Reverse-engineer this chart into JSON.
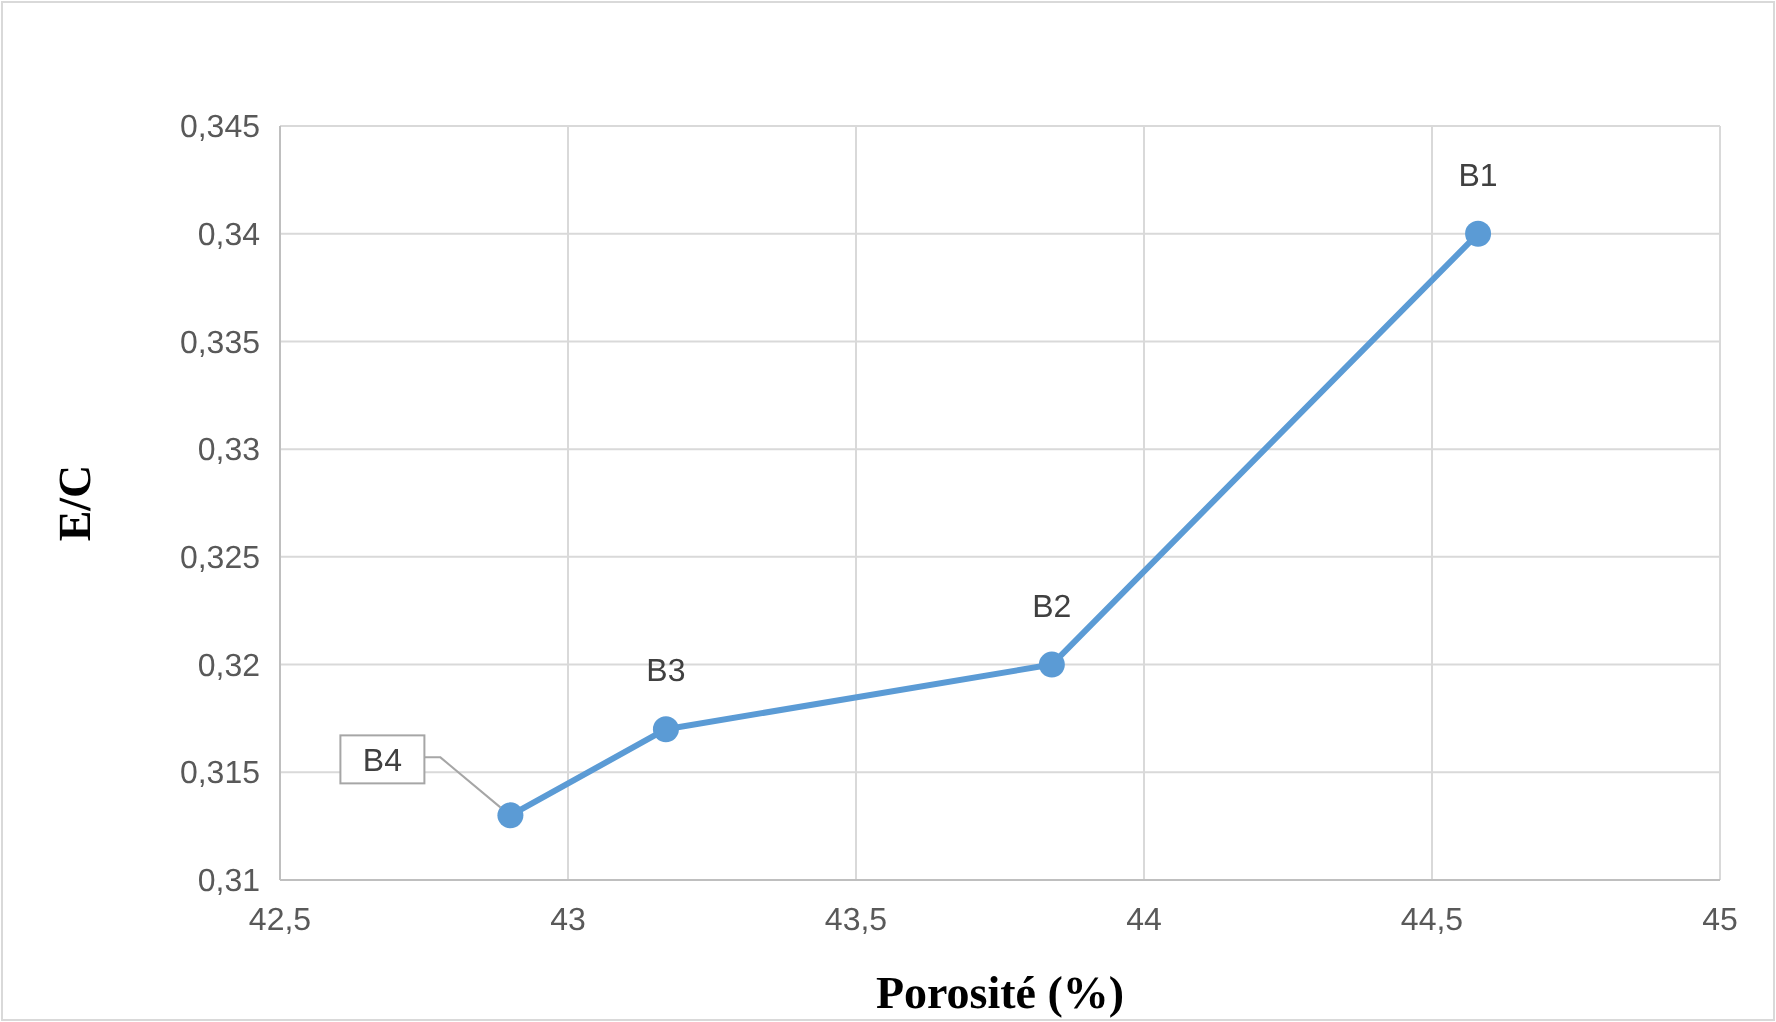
{
  "chart_data": {
    "type": "line",
    "xlabel": "Porosité (%)",
    "ylabel": "E/C",
    "x": [
      42.9,
      43.17,
      43.84,
      44.58
    ],
    "series": [
      {
        "color": "#5b9bd5",
        "values": [
          0.313,
          0.317,
          0.32,
          0.34
        ]
      }
    ],
    "xlim": [
      42.5,
      45
    ],
    "ylim": [
      0.31,
      0.345
    ],
    "xticks": [
      {
        "value": 42.5,
        "label": "42,5"
      },
      {
        "value": 43,
        "label": "43"
      },
      {
        "value": 43.5,
        "label": "43,5"
      },
      {
        "value": 44,
        "label": "44"
      },
      {
        "value": 44.5,
        "label": "44,5"
      },
      {
        "value": 45,
        "label": "45"
      }
    ],
    "yticks": [
      {
        "value": 0.31,
        "label": "0,31"
      },
      {
        "value": 0.315,
        "label": "0,315"
      },
      {
        "value": 0.32,
        "label": "0,32"
      },
      {
        "value": 0.325,
        "label": "0,325"
      },
      {
        "value": 0.33,
        "label": "0,33"
      },
      {
        "value": 0.335,
        "label": "0,335"
      },
      {
        "value": 0.34,
        "label": "0,34"
      },
      {
        "value": 0.345,
        "label": "0,345"
      }
    ],
    "grid": true,
    "marker": "circle",
    "line_style": "solid",
    "annotations": [
      {
        "text": "B1",
        "x": 44.58,
        "y": 0.34
      },
      {
        "text": "B2",
        "x": 43.84,
        "y": 0.32
      },
      {
        "text": "B3",
        "x": 43.17,
        "y": 0.317
      },
      {
        "text": "B4",
        "x": 42.9,
        "y": 0.313
      }
    ]
  }
}
